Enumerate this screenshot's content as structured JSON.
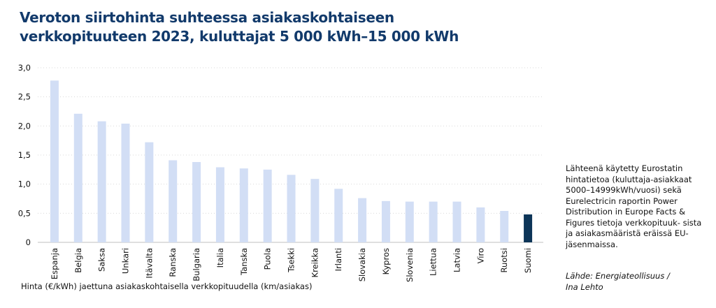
{
  "title_lines": [
    "Veroton siirtohinta suhteessa asiakaskohtaiseen",
    "verkkopituuteen 2023, kuluttajat 5 000 kWh–15 000 kWh"
  ],
  "side_note": "Lähteenä käytetty Eurostatin hintatietoa (kuluttaja-asiakkaat 5000–14999kWh/vuosi) sekä Eurelectricin raportin Power Distribution in Europe Facts & Figures tietoja verkkopituuk- sista ja asiakasmääristä eräissä EU-jäsenmaissa.",
  "source_lines": [
    "Lähde: Energiateollisuus /",
    "Ina Lehto"
  ],
  "colors": {
    "title": "#123a6b",
    "bar": "#d2def5",
    "highlight": "#0d3558",
    "grid": "#d9d9d9"
  },
  "chart_data": {
    "type": "bar",
    "title": "Veroton siirtohinta suhteessa asiakaskohtaiseen verkkopituuteen 2023, kuluttajat 5 000 kWh–15 000 kWh",
    "xlabel": "Hinta (€/kWh) jaettuna asiakaskohtaisella verkkopituudella (km/asiakas)",
    "ylabel": "",
    "ylim": [
      0,
      3.0
    ],
    "yticks": [
      0,
      0.5,
      1.0,
      1.5,
      2.0,
      2.5,
      3.0
    ],
    "ytick_labels": [
      "0",
      "0,5",
      "1,0",
      "1,5",
      "2,0",
      "2,5",
      "3,0"
    ],
    "grid": true,
    "highlight_category": "Suomi",
    "categories": [
      "Espanja",
      "Belgia",
      "Saksa",
      "Unkari",
      "Itävalta",
      "Ranska",
      "Bulgaria",
      "Italia",
      "Tanska",
      "Puola",
      "Tsekki",
      "Kreikka",
      "Irlanti",
      "Slovakia",
      "Kypros",
      "Slovenia",
      "Liettua",
      "Latvia",
      "Viro",
      "Ruotsi",
      "Suomi"
    ],
    "values": [
      2.78,
      2.21,
      2.08,
      2.04,
      1.72,
      1.41,
      1.38,
      1.29,
      1.27,
      1.25,
      1.16,
      1.09,
      0.92,
      0.76,
      0.71,
      0.7,
      0.7,
      0.7,
      0.6,
      0.54,
      0.48
    ]
  }
}
